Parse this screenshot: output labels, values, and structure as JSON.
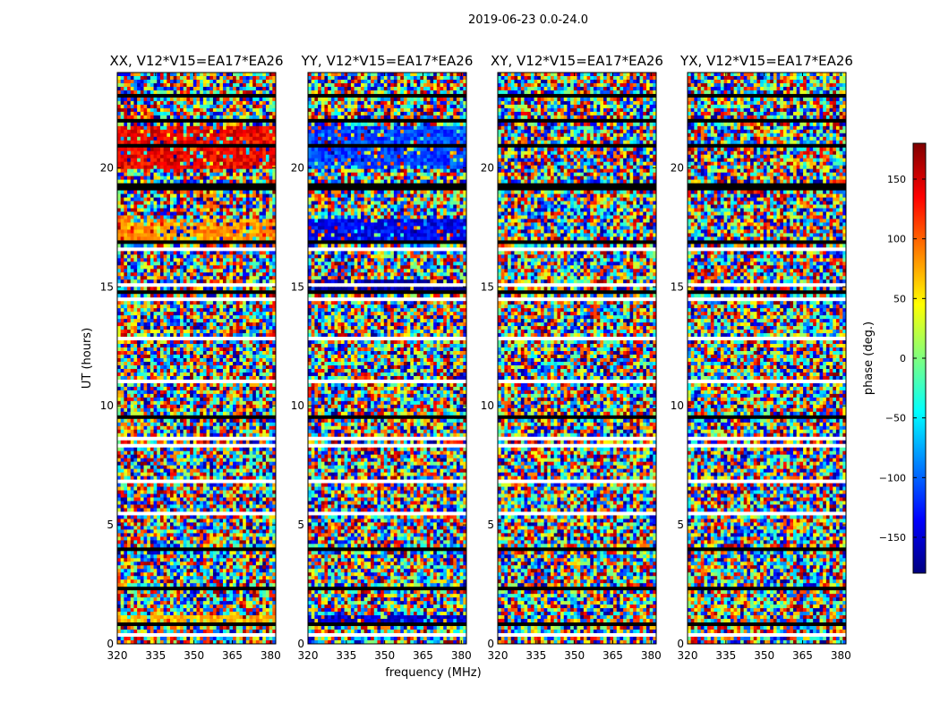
{
  "figure": {
    "suptitle": "2019-06-23 0.0-24.0"
  },
  "chart_data": {
    "type": "heatmap",
    "panels": [
      {
        "title": "XX, V12*V15=EA17*EA26",
        "pol": "XX"
      },
      {
        "title": "YY, V12*V15=EA17*EA26",
        "pol": "YY"
      },
      {
        "title": "XY, V12*V15=EA17*EA26",
        "pol": "XY"
      },
      {
        "title": "YX, V12*V15=EA17*EA26",
        "pol": "YX"
      }
    ],
    "xlabel": "frequency (MHz)",
    "ylabel": "UT (hours)",
    "xlim": [
      320,
      382
    ],
    "ylim": [
      0,
      24
    ],
    "xticks": [
      320,
      335,
      350,
      365,
      380
    ],
    "yticks": [
      0,
      5,
      10,
      15,
      20
    ],
    "colorbar": {
      "label": "phase (deg.)",
      "range": [
        -180,
        180
      ],
      "ticks": [
        150,
        100,
        50,
        0,
        -50,
        -100,
        -150
      ],
      "tick_labels": [
        "150",
        "100",
        "50",
        "0",
        "−50",
        "−100",
        "−150"
      ],
      "colormap": [
        "#00007f",
        "#0000ff",
        "#007fff",
        "#00ffff",
        "#7fff7f",
        "#ffff00",
        "#ff7f00",
        "#ff0000",
        "#7f0000"
      ]
    },
    "flagged_color": "#ffffff",
    "gap_color": "#000000",
    "coherent_bands": [
      {
        "panel": 0,
        "ut": [
          19.9,
          21.7
        ],
        "phase": 140
      },
      {
        "panel": 1,
        "ut": [
          19.9,
          21.7
        ],
        "phase": -110
      },
      {
        "panel": 0,
        "ut": [
          17.0,
          17.8
        ],
        "phase": 80
      },
      {
        "panel": 1,
        "ut": [
          17.0,
          17.8
        ],
        "phase": -140
      },
      {
        "panel": 1,
        "ut": [
          14.9,
          15.3
        ],
        "phase": -170
      },
      {
        "panel": 0,
        "ut": [
          0.9,
          1.2
        ],
        "phase": 70
      },
      {
        "panel": 1,
        "ut": [
          0.9,
          1.2
        ],
        "phase": -150
      }
    ]
  }
}
